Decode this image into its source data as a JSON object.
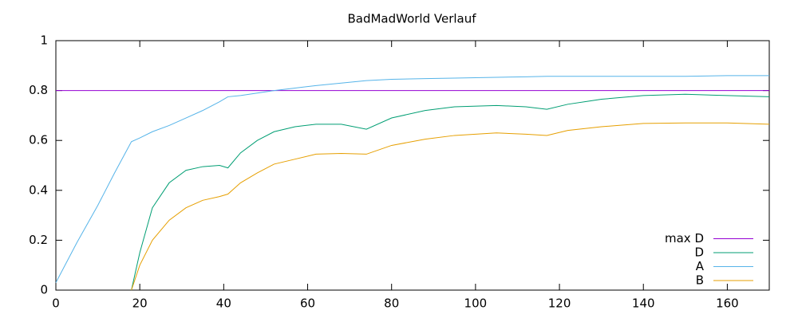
{
  "chart_data": {
    "type": "line",
    "title": "BadMadWorld Verlauf",
    "x": [
      0,
      5,
      10,
      14,
      18,
      20,
      23,
      27,
      31,
      35,
      39,
      41,
      44,
      48,
      52,
      57,
      62,
      68,
      74,
      80,
      88,
      95,
      105,
      112,
      117,
      122,
      130,
      140,
      150,
      160,
      170
    ],
    "series": [
      {
        "name": "max D",
        "color": "#9400d3",
        "values": [
          0.8,
          0.8,
          0.8,
          0.8,
          0.8,
          0.8,
          0.8,
          0.8,
          0.8,
          0.8,
          0.8,
          0.8,
          0.8,
          0.8,
          0.8,
          0.8,
          0.8,
          0.8,
          0.8,
          0.8,
          0.8,
          0.8,
          0.8,
          0.8,
          0.8,
          0.8,
          0.8,
          0.8,
          0.8,
          0.8,
          0.8
        ]
      },
      {
        "name": "D",
        "color": "#009e73",
        "values": [
          null,
          null,
          null,
          null,
          0,
          0.15,
          0.33,
          0.43,
          0.48,
          0.495,
          0.5,
          0.49,
          0.55,
          0.6,
          0.635,
          0.655,
          0.665,
          0.665,
          0.645,
          0.69,
          0.72,
          0.735,
          0.74,
          0.735,
          0.725,
          0.745,
          0.765,
          0.78,
          0.785,
          0.78,
          0.775
        ]
      },
      {
        "name": "A",
        "color": "#56b4e9",
        "values": [
          0.03,
          0.19,
          0.34,
          0.47,
          0.595,
          0.61,
          0.635,
          0.66,
          0.69,
          0.72,
          0.755,
          0.775,
          0.78,
          0.79,
          0.8,
          0.81,
          0.82,
          0.83,
          0.84,
          0.845,
          0.848,
          0.85,
          0.853,
          0.855,
          0.857,
          0.857,
          0.857,
          0.857,
          0.857,
          0.86,
          0.86
        ]
      },
      {
        "name": "B",
        "color": "#e69f00",
        "values": [
          null,
          null,
          null,
          null,
          0,
          0.1,
          0.2,
          0.28,
          0.33,
          0.36,
          0.375,
          0.385,
          0.43,
          0.47,
          0.505,
          0.525,
          0.545,
          0.548,
          0.545,
          0.58,
          0.605,
          0.62,
          0.63,
          0.625,
          0.62,
          0.64,
          0.655,
          0.668,
          0.67,
          0.67,
          0.665
        ]
      }
    ],
    "xlim": [
      0,
      170
    ],
    "ylim": [
      0,
      1
    ],
    "xticks": [
      0,
      20,
      40,
      60,
      80,
      100,
      120,
      140,
      160
    ],
    "yticks": [
      0,
      0.2,
      0.4,
      0.6,
      0.8,
      1
    ],
    "grid": false,
    "legend": "bottom right"
  }
}
